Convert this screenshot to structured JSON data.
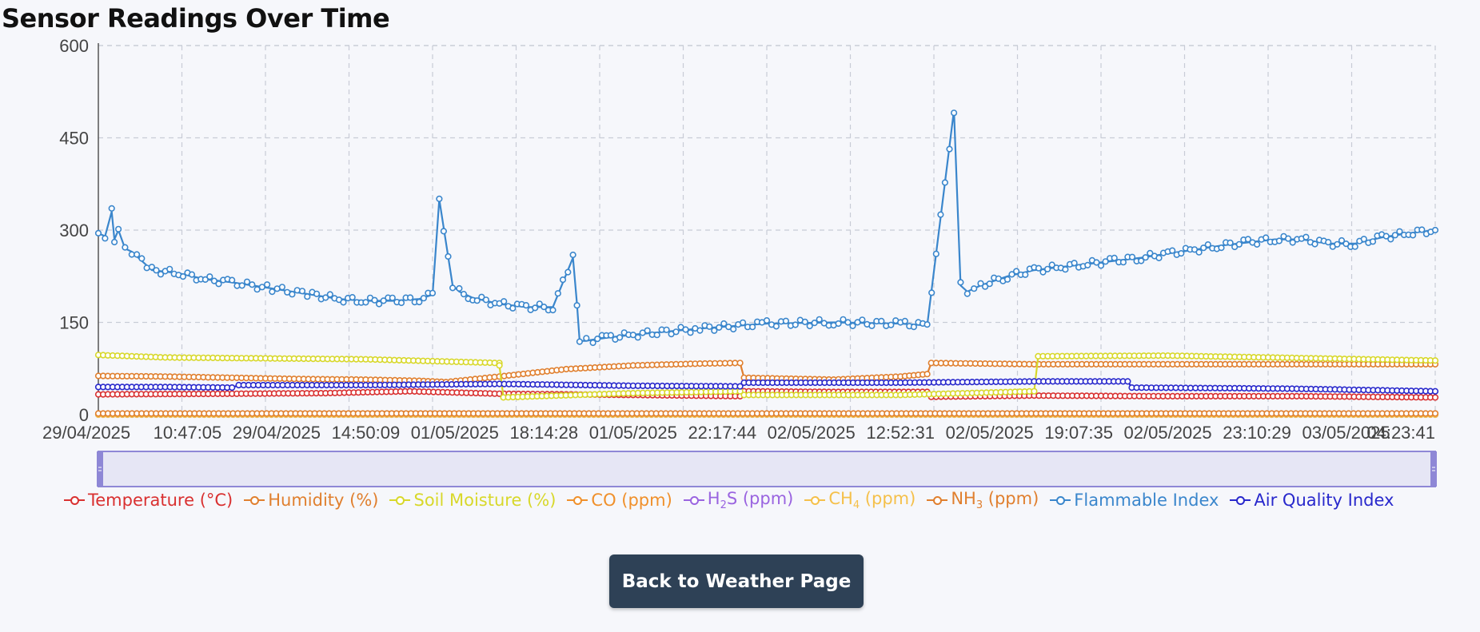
{
  "page": {
    "title": "Sensor Readings Over Time",
    "back_button_label": "Back to Weather Page"
  },
  "chart_data": {
    "type": "line",
    "title": "Sensor Readings Over Time",
    "xlabel": "",
    "ylabel": "",
    "ylim": [
      0,
      600
    ],
    "y_ticks": [
      0,
      150,
      300,
      450,
      600
    ],
    "x_tick_labels": [
      "29/04/2025 10:47:05",
      "29/04/2025 14:50:09",
      "01/05/2025 18:14:28",
      "01/05/2025 22:17:44",
      "02/05/2025 12:52:31",
      "02/05/2025 19:07:35",
      "02/05/2025 23:10:29",
      "03/05/2025 04:23:41"
    ],
    "grid": true,
    "legend_position": "bottom",
    "data_zoom_slider": true,
    "series": [
      {
        "name": "Temperature (°C)",
        "color": "#d93030",
        "x": [
          0,
          0.1,
          0.17,
          0.233,
          0.3,
          0.4,
          0.48,
          0.483,
          0.55,
          0.62,
          0.623,
          0.7,
          0.8,
          0.9,
          1.0
        ],
        "values": [
          33,
          34,
          35,
          38,
          34,
          32,
          30,
          38,
          37,
          37,
          29,
          31,
          30,
          30,
          28
        ]
      },
      {
        "name": "Humidity (%)",
        "color": "#e07f2e",
        "x": [
          0,
          0.05,
          0.1,
          0.15,
          0.2,
          0.24,
          0.26,
          0.3,
          0.35,
          0.4,
          0.45,
          0.48,
          0.483,
          0.55,
          0.6,
          0.62,
          0.623,
          0.7,
          0.8,
          0.9,
          1.0
        ],
        "values": [
          63,
          62,
          60,
          58,
          57,
          55,
          53,
          62,
          74,
          80,
          83,
          84,
          60,
          57,
          62,
          66,
          84,
          82,
          82,
          82,
          82
        ]
      },
      {
        "name": "Soil Moisture (%)",
        "color": "#d8d82a",
        "x": [
          0,
          0.05,
          0.1,
          0.2,
          0.3,
          0.3,
          0.303,
          0.4,
          0.48,
          0.483,
          0.6,
          0.7,
          0.703,
          0.8,
          0.9,
          1.0
        ],
        "values": [
          97,
          93,
          92,
          90,
          84,
          80,
          28,
          35,
          38,
          32,
          32,
          38,
          95,
          96,
          92,
          88
        ]
      },
      {
        "name": "CO (ppm)",
        "color": "#f0902b",
        "x": [
          0,
          0.25,
          0.5,
          0.75,
          1.0
        ],
        "values": [
          1,
          1,
          1,
          1,
          1
        ]
      },
      {
        "name": "H₂S (ppm)",
        "color": "#9a64e0",
        "x": [
          0,
          0.5,
          1.0
        ],
        "values": [
          0,
          0,
          0
        ]
      },
      {
        "name": "CH₄ (ppm)",
        "color": "#f5c04a",
        "x": [
          0,
          0.5,
          1.0
        ],
        "values": [
          0,
          0,
          0
        ]
      },
      {
        "name": "NH₃ (ppm)",
        "color": "#e07f2e",
        "x": [
          0,
          0.5,
          1.0
        ],
        "values": [
          2,
          2,
          2
        ]
      },
      {
        "name": "Flammable Index",
        "color": "#3a86cc",
        "x": [
          0,
          0.005,
          0.01,
          0.012,
          0.015,
          0.02,
          0.025,
          0.04,
          0.06,
          0.08,
          0.1,
          0.13,
          0.16,
          0.18,
          0.2,
          0.22,
          0.24,
          0.25,
          0.255,
          0.265,
          0.27,
          0.28,
          0.3,
          0.32,
          0.34,
          0.355,
          0.358,
          0.36,
          0.365,
          0.37,
          0.38,
          0.4,
          0.45,
          0.5,
          0.55,
          0.6,
          0.62,
          0.64,
          0.645,
          0.65,
          0.655,
          0.66,
          0.68,
          0.7,
          0.72,
          0.74,
          0.76,
          0.78,
          0.8,
          0.82,
          0.84,
          0.86,
          0.88,
          0.9,
          0.92,
          0.94,
          0.96,
          0.98,
          1.0
        ],
        "values": [
          295,
          290,
          330,
          285,
          300,
          270,
          265,
          235,
          230,
          220,
          215,
          205,
          195,
          188,
          185,
          185,
          188,
          195,
          350,
          210,
          200,
          190,
          180,
          175,
          175,
          255,
          180,
          120,
          120,
          122,
          125,
          130,
          140,
          148,
          150,
          148,
          145,
          495,
          210,
          200,
          205,
          210,
          225,
          235,
          240,
          245,
          250,
          255,
          262,
          268,
          275,
          280,
          285,
          285,
          278,
          278,
          288,
          295,
          300
        ]
      },
      {
        "name": "Air Quality Index",
        "color": "#2828cc",
        "x": [
          0,
          0.05,
          0.1,
          0.105,
          0.2,
          0.3,
          0.4,
          0.48,
          0.483,
          0.6,
          0.7,
          0.77,
          0.773,
          0.85,
          0.9,
          1.0
        ],
        "values": [
          45,
          45,
          44,
          48,
          48,
          50,
          47,
          46,
          52,
          52,
          54,
          54,
          44,
          43,
          42,
          38
        ]
      }
    ]
  },
  "legend": [
    {
      "pre": "Temperature (°C)",
      "sub": "",
      "post": "",
      "color": "#d93030"
    },
    {
      "pre": "Humidity (%)",
      "sub": "",
      "post": "",
      "color": "#e07f2e"
    },
    {
      "pre": "Soil Moisture (%)",
      "sub": "",
      "post": "",
      "color": "#d8d82a"
    },
    {
      "pre": "CO (ppm)",
      "sub": "",
      "post": "",
      "color": "#f0902b"
    },
    {
      "pre": "H",
      "sub": "2",
      "post": "S (ppm)",
      "color": "#9a64e0"
    },
    {
      "pre": "CH",
      "sub": "4",
      "post": " (ppm)",
      "color": "#f5c04a"
    },
    {
      "pre": "NH",
      "sub": "3",
      "post": " (ppm)",
      "color": "#e07f2e"
    },
    {
      "pre": "Flammable Index",
      "sub": "",
      "post": "",
      "color": "#3a86cc"
    },
    {
      "pre": "Air Quality Index",
      "sub": "",
      "post": "",
      "color": "#2828cc"
    }
  ],
  "colors": {
    "grid": "#c8ccd6",
    "axis": "#555555",
    "slider_fill": "#e6e6f5",
    "slider_border": "#8e87d6",
    "button_bg": "#2e4156"
  }
}
